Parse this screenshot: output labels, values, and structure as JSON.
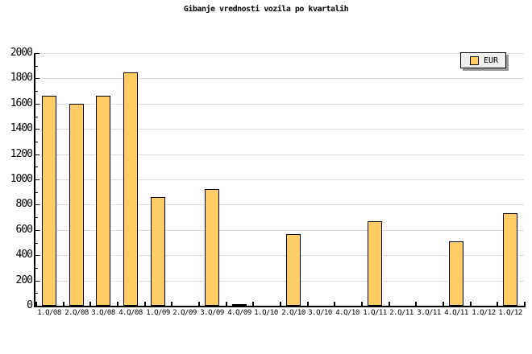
{
  "chart_data": {
    "type": "bar",
    "title": "Gibanje vrednosti vozila po kvartalih",
    "categories": [
      "1.Q/08",
      "2.Q/08",
      "3.Q/08",
      "4.Q/08",
      "1.Q/09",
      "2.Q/09",
      "3.Q/09",
      "4.Q/09",
      "1.Q/10",
      "2.Q/10",
      "3.Q/10",
      "4.Q/10",
      "1.Q/11",
      "2.Q/11",
      "3.Q/11",
      "4.Q/11",
      "1.Q/12",
      "1.Q/12"
    ],
    "values": [
      1665,
      1600,
      1665,
      1850,
      860,
      0,
      925,
      10,
      0,
      565,
      0,
      0,
      670,
      0,
      0,
      510,
      0,
      730
    ],
    "series_name": "EUR",
    "xlabel": "",
    "ylabel": "",
    "ylim": [
      0,
      2000
    ],
    "ytick_major": 200,
    "ytick_minor": 100,
    "grid": true,
    "legend_position": "top-right",
    "colors": {
      "bar_fill": "#FFCC66",
      "bar_border": "#000000",
      "grid": "#DCDCDC",
      "axis": "#000000",
      "legend_bg": "#EFEFEF",
      "legend_shadow": "#999999",
      "background": "#FFFFFF"
    }
  }
}
